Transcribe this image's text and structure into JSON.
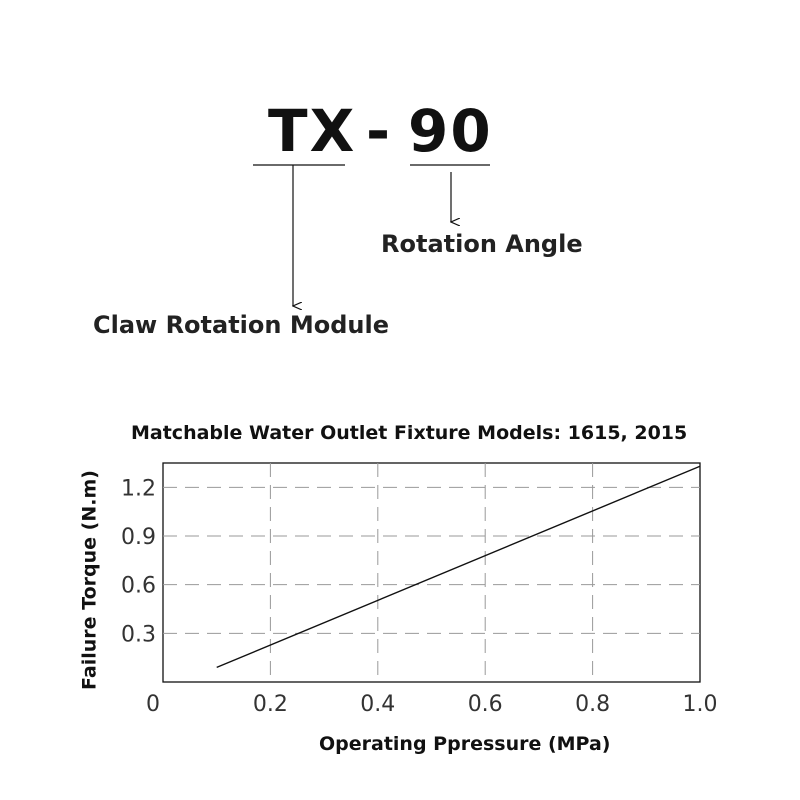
{
  "model_code": {
    "prefix": "TX",
    "separator": "-",
    "suffix": "90"
  },
  "callouts": {
    "prefix_label": "Claw Rotation Module",
    "suffix_label": "Rotation Angle"
  },
  "chart_data": {
    "type": "line",
    "title": "Matchable Water Outlet Fixture Models: 1615, 2015",
    "xlabel": "Operating Ppressure (MPa)",
    "ylabel": "Failure Torque (N.m)",
    "xlim": [
      0,
      1.0
    ],
    "ylim": [
      0,
      1.35
    ],
    "x_ticks": [
      "0",
      "0.2",
      "0.4",
      "0.6",
      "0.8",
      "1.0"
    ],
    "y_ticks": [
      "0.3",
      "0.6",
      "0.9",
      "1.2"
    ],
    "grid": true,
    "series": [
      {
        "x": [
          0.1,
          1.0
        ],
        "y": [
          0.09,
          1.33
        ]
      }
    ]
  },
  "colors": {
    "ink": "#111111",
    "grid": "#999999",
    "tick_text": "#333333"
  }
}
